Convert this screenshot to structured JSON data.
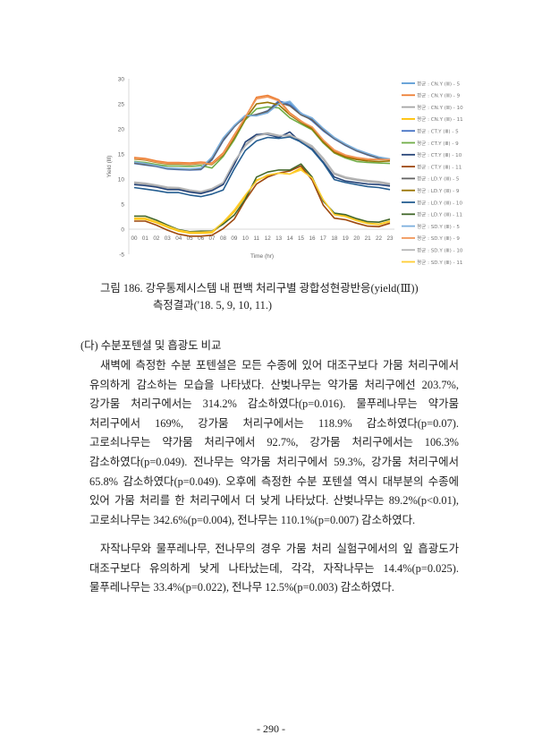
{
  "chart_data": {
    "type": "line",
    "xlabel": "Time (hr)",
    "ylabel": "Yield (Ⅲ)",
    "ylim": [
      -5,
      30
    ],
    "yticks": [
      30,
      25,
      20,
      15,
      10,
      5,
      0,
      -5
    ],
    "categories": [
      "00",
      "01",
      "02",
      "03",
      "04",
      "05",
      "06",
      "07",
      "08",
      "09",
      "10",
      "11",
      "12",
      "13",
      "14",
      "15",
      "16",
      "17",
      "18",
      "19",
      "20",
      "21",
      "22",
      "23"
    ],
    "grid": false,
    "legend_position": "right",
    "series": [
      {
        "name": "평균 : CN.Y (Ⅲ) - 5",
        "color": "#5b9bd5",
        "values": [
          13.3,
          13.0,
          12.6,
          12.1,
          12.0,
          11.9,
          12.1,
          14.2,
          18.0,
          20.6,
          22.5,
          22.8,
          23.4,
          25.4,
          25.2,
          23.0,
          22.0,
          20.0,
          18.2,
          16.9,
          15.8,
          15.0,
          14.3,
          13.9
        ]
      },
      {
        "name": "평균 : CN.Y (Ⅲ) - 9",
        "color": "#ed7d31",
        "values": [
          14.3,
          14.1,
          13.6,
          13.3,
          13.3,
          13.2,
          13.4,
          13.2,
          15.2,
          18.8,
          22.3,
          26.3,
          26.7,
          25.8,
          23.2,
          21.6,
          20.2,
          17.6,
          15.6,
          14.6,
          14.1,
          13.9,
          13.9,
          13.9
        ]
      },
      {
        "name": "평균 : CN.Y (Ⅲ) - 10",
        "color": "#a5a5a5",
        "values": [
          9.2,
          9.0,
          8.6,
          8.2,
          8.1,
          7.6,
          7.3,
          7.9,
          9.1,
          13.2,
          16.8,
          18.8,
          19.2,
          18.7,
          18.6,
          17.6,
          16.4,
          14.0,
          11.0,
          10.2,
          9.8,
          9.5,
          9.3,
          8.9
        ]
      },
      {
        "name": "평균 : CN.Y (Ⅲ) - 11",
        "color": "#ffc000",
        "values": [
          2.0,
          2.0,
          1.3,
          0.4,
          -0.4,
          -0.8,
          -0.8,
          -0.7,
          1.2,
          3.5,
          6.5,
          9.8,
          10.6,
          11.2,
          11.0,
          12.2,
          10.0,
          5.8,
          3.0,
          2.6,
          1.8,
          1.2,
          1.0,
          1.6
        ]
      },
      {
        "name": "평균 : CT.Y (Ⅲ) - 5",
        "color": "#4472c4",
        "values": [
          13.1,
          12.8,
          12.5,
          12.0,
          11.9,
          11.8,
          11.9,
          13.8,
          17.6,
          20.4,
          22.6,
          22.8,
          23.6,
          25.6,
          24.8,
          23.2,
          21.6,
          19.6,
          18.0,
          16.7,
          15.6,
          14.8,
          14.1,
          13.8
        ]
      },
      {
        "name": "평균 : CT.Y (Ⅲ) - 9",
        "color": "#70ad47",
        "values": [
          13.5,
          13.3,
          12.9,
          12.6,
          12.6,
          12.5,
          12.7,
          12.2,
          14.5,
          17.8,
          21.8,
          24.0,
          24.4,
          24.2,
          22.2,
          21.0,
          19.8,
          17.2,
          15.2,
          14.2,
          13.5,
          13.3,
          13.2,
          13.1
        ]
      },
      {
        "name": "평균 : CT.Y (Ⅲ) - 10",
        "color": "#264478",
        "values": [
          8.9,
          8.7,
          8.4,
          7.9,
          7.9,
          7.4,
          7.1,
          7.7,
          8.9,
          12.9,
          17.4,
          18.9,
          18.9,
          18.3,
          19.4,
          17.3,
          16.0,
          13.4,
          10.4,
          9.6,
          9.3,
          9.0,
          8.9,
          8.6
        ]
      },
      {
        "name": "평균 : CT.Y (Ⅲ) - 11",
        "color": "#9e480e",
        "values": [
          1.6,
          1.6,
          0.8,
          -0.2,
          -1.0,
          -1.4,
          -1.4,
          -1.2,
          0.1,
          2.0,
          5.8,
          9.0,
          10.4,
          11.2,
          11.6,
          12.6,
          9.8,
          4.8,
          2.2,
          1.9,
          1.2,
          0.6,
          0.5,
          1.2
        ]
      },
      {
        "name": "평균 : LD.Y (Ⅲ) - 5",
        "color": "#636363",
        "values": [
          13.2,
          12.9,
          12.6,
          12.1,
          12.0,
          11.9,
          12.0,
          14.0,
          17.8,
          20.5,
          22.4,
          22.9,
          23.5,
          25.3,
          24.6,
          22.8,
          21.8,
          19.8,
          18.1,
          16.8,
          15.7,
          14.9,
          14.2,
          13.8
        ]
      },
      {
        "name": "평균 : LD.Y (Ⅲ) - 9",
        "color": "#997300",
        "values": [
          14.0,
          13.8,
          13.3,
          13.0,
          13.0,
          12.9,
          13.1,
          12.9,
          14.8,
          18.2,
          22.0,
          25.0,
          25.3,
          24.8,
          22.8,
          21.3,
          20.0,
          17.4,
          15.3,
          14.4,
          13.9,
          13.6,
          13.5,
          13.6
        ]
      },
      {
        "name": "평균 : LD.Y (Ⅲ) - 10",
        "color": "#255e91",
        "values": [
          8.3,
          8.0,
          7.7,
          7.3,
          7.3,
          6.8,
          6.5,
          7.0,
          7.8,
          12.0,
          15.7,
          17.6,
          18.3,
          18.1,
          18.4,
          17.4,
          15.8,
          13.2,
          9.9,
          9.3,
          8.9,
          8.5,
          8.3,
          7.9
        ]
      },
      {
        "name": "평균 : LD.Y (Ⅲ) - 11",
        "color": "#43682b",
        "values": [
          2.6,
          2.6,
          1.8,
          0.8,
          -0.1,
          -0.5,
          -0.4,
          -0.4,
          1.0,
          2.8,
          6.0,
          10.4,
          11.4,
          11.8,
          11.8,
          13.0,
          10.4,
          5.6,
          3.2,
          2.9,
          2.1,
          1.5,
          1.4,
          2.0
        ]
      },
      {
        "name": "평균 : SD.Y (Ⅲ) - 5",
        "color": "#7cafdd",
        "values": [
          13.4,
          13.1,
          12.7,
          12.2,
          12.1,
          12.0,
          12.2,
          14.4,
          18.2,
          20.7,
          22.7,
          22.6,
          23.2,
          25.0,
          25.5,
          23.1,
          22.2,
          20.1,
          18.3,
          17.0,
          15.9,
          15.1,
          14.4,
          14.0
        ]
      },
      {
        "name": "평균 : SD.Y (Ⅲ) - 9",
        "color": "#f1975a",
        "values": [
          14.1,
          13.9,
          13.4,
          13.1,
          13.1,
          13.0,
          13.2,
          13.0,
          15.0,
          18.6,
          22.4,
          26.0,
          26.4,
          25.6,
          23.0,
          21.5,
          20.4,
          17.8,
          15.8,
          14.8,
          14.3,
          14.0,
          13.9,
          13.9
        ]
      },
      {
        "name": "평균 : SD.Y (Ⅲ) - 10",
        "color": "#b7b7b7",
        "values": [
          9.4,
          9.2,
          8.8,
          8.4,
          8.3,
          7.8,
          7.5,
          8.1,
          9.3,
          13.5,
          16.6,
          18.6,
          19.0,
          18.6,
          18.8,
          17.8,
          16.6,
          14.2,
          11.2,
          10.4,
          10.0,
          9.7,
          9.5,
          9.1
        ]
      },
      {
        "name": "평균 : SD.Y (Ⅲ) - 11",
        "color": "#ffcd33",
        "values": [
          2.2,
          2.2,
          1.5,
          0.6,
          -0.2,
          -0.6,
          -0.6,
          -0.5,
          1.4,
          3.8,
          6.8,
          9.6,
          10.8,
          11.2,
          11.0,
          11.8,
          10.2,
          5.9,
          2.9,
          2.5,
          1.7,
          1.1,
          0.9,
          1.5
        ]
      }
    ]
  },
  "caption": {
    "line1": "그림 186. 강우통제시스템 내 편백 처리구별 광합성현광반응(yield(Ⅲ))",
    "line2": "측정결과('18. 5, 9, 10, 11.)"
  },
  "section_heading": "(다) 수분포텐셜 및 흡광도 비교",
  "paragraph1": [
    "새벽에 측정한 수분 포텐셜은 모든 수종에 있어 대조구보다 가뭄 처리구에서",
    "유의하게 감소하는 모습을 나타냈다. 산벚나무는 약가뭄 처리구에선 203.7%,",
    "강가뭄 처리구에서는 314.2% 감소하였다(p=0.016). 물푸레나무는 약가뭄",
    "처리구에서 169%, 강가뭄 처리구에서는 118.9% 감소하였다(p=0.07).",
    "고로쇠나무는 약가뭄 처리구에서 92.7%, 강가뭄 처리구에서는 106.3%",
    "감소하였다(p=0.049). 전나무는 약가뭄 처리구에서 59.3%, 강가뭄 처리구에서",
    "65.8% 감소하였다(p=0.049). 오후에 측정한 수분 포텐셜 역시 대부분의 수종에",
    "있어 가뭄 처리를 한 처리구에서 더 낮게 나타났다. 산벚나무는 89.2%(p<0.01),",
    "고로쇠나무는 342.6%(p=0.004), 전나무는 110.1%(p=0.007) 감소하였다."
  ],
  "paragraph2": [
    "자작나무와 물푸레나무, 전나무의 경우 가뭄 처리 실험구에서의 잎 흡광도가",
    "대조구보다 유의하게 낮게 나타났는데, 각각, 자작나무는 14.4%(p=0.025).",
    "물푸레나무는 33.4%(p=0.022), 전나무 12.5%(p=0.003) 감소하였다."
  ],
  "page_number": "- 290 -"
}
